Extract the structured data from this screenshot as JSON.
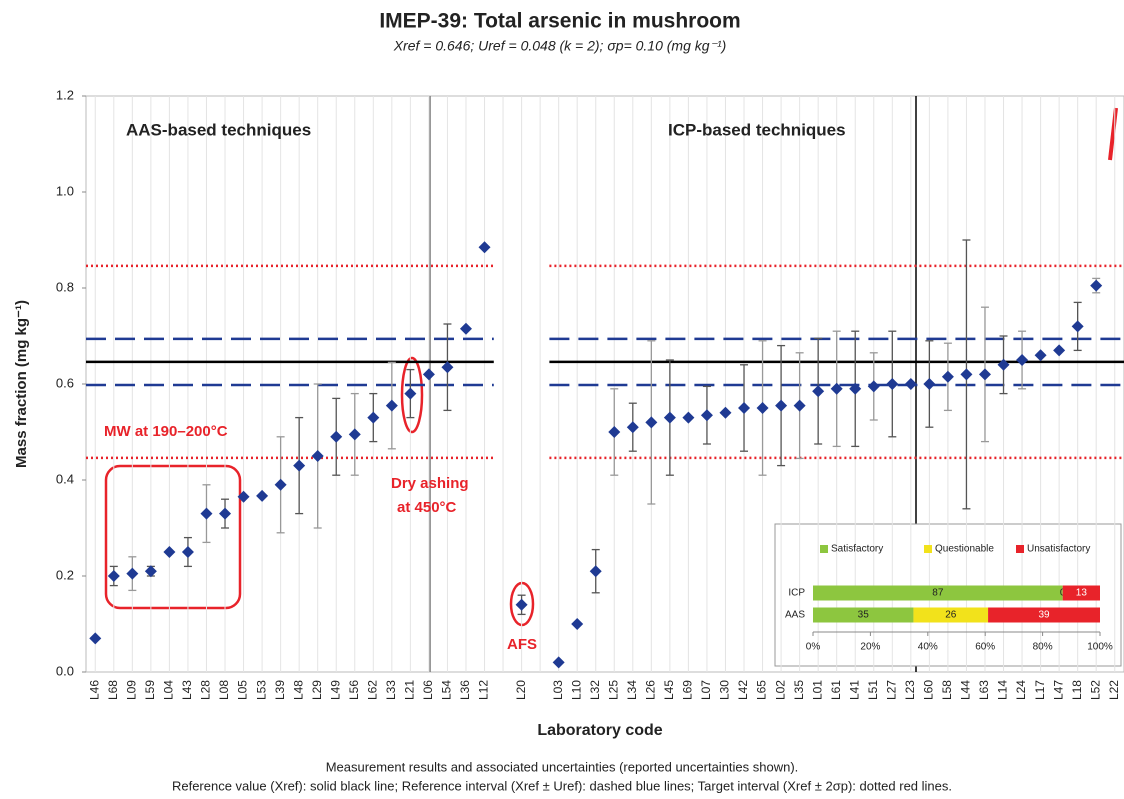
{
  "chart_data": [
    {
      "type": "scatter",
      "title": "IMEP-39: Total arsenic in mushroom",
      "subtitle": "Xref = 0.646; Uref = 0.048 (k = 2); σp= 0.10 (mg kg⁻¹)",
      "x_label": "Laboratory code",
      "y_label": "Mass fraction (mg kg⁻¹)",
      "categories": [
        "L46",
        "L68",
        "L09",
        "L59",
        "L04",
        "L43",
        "L28",
        "L08",
        "L05",
        "L53",
        "L39",
        "L48",
        "L29",
        "L49",
        "L56",
        "L62",
        "L33",
        "L21",
        "L06",
        "L54",
        "L36",
        "L12",
        null,
        "L20",
        null,
        "L03",
        "L10",
        "L32",
        "L25",
        "L34",
        "L26",
        "L45",
        "L69",
        "L07",
        "L30",
        "L42",
        "L65",
        "L02",
        "L35",
        "L01",
        "L61",
        "L41",
        "L51",
        "L27",
        "L23",
        "L60",
        "L58",
        "L44",
        "L63",
        "L14",
        "L24",
        "L17",
        "L47",
        "L18",
        "L52",
        "L22"
      ],
      "values": [
        0.07,
        0.2,
        0.205,
        0.21,
        0.25,
        0.25,
        0.33,
        0.33,
        0.365,
        0.367,
        0.39,
        0.43,
        0.45,
        0.49,
        0.495,
        0.53,
        0.555,
        0.58,
        0.62,
        0.635,
        0.715,
        0.885,
        null,
        0.14,
        null,
        0.02,
        0.1,
        0.21,
        0.5,
        0.51,
        0.52,
        0.53,
        0.53,
        0.535,
        0.54,
        0.55,
        0.55,
        0.555,
        0.555,
        0.585,
        0.59,
        0.59,
        0.595,
        0.6,
        0.6,
        0.6,
        0.615,
        0.62,
        0.62,
        0.64,
        0.65,
        0.66,
        0.67,
        0.72,
        0.805,
        null
      ],
      "errors": [
        null,
        0.02,
        0.035,
        0.01,
        null,
        0.03,
        0.06,
        0.03,
        null,
        null,
        0.1,
        0.1,
        0.15,
        0.08,
        0.085,
        0.05,
        0.09,
        0.05,
        null,
        0.09,
        null,
        null,
        null,
        0.02,
        null,
        null,
        null,
        0.045,
        0.09,
        0.05,
        0.17,
        0.12,
        null,
        0.06,
        null,
        0.09,
        0.14,
        0.125,
        0.11,
        0.11,
        0.12,
        0.12,
        0.07,
        0.11,
        null,
        0.09,
        0.07,
        0.28,
        0.14,
        0.06,
        0.06,
        null,
        null,
        0.05,
        0.015,
        null
      ],
      "color": "#1f3a93",
      "reference_value": 0.646,
      "reference_interval": [
        0.598,
        0.694
      ],
      "target_interval": [
        0.446,
        0.846
      ],
      "annotations": [
        "AAS-based techniques",
        "ICP-based techniques",
        "MW at 190–200°C",
        "Dry ashing",
        "at 450°C",
        "AFS"
      ],
      "ylim": [
        0,
        1.2
      ],
      "yticks": [
        {
          "value": 0,
          "label": "0.0"
        },
        0.2,
        0.4,
        0.6,
        0.8,
        {
          "value": 1,
          "label": "1.0"
        },
        1.2
      ],
      "grid": true
    },
    {
      "type": "bar",
      "orientation": "horizontal",
      "stacked": true,
      "categories": [
        "ICP",
        "AAS"
      ],
      "series": [
        {
          "name": "Satisfactory",
          "color": "#8dc63f",
          "values": [
            87,
            35
          ]
        },
        {
          "name": "Questionable",
          "color": "#f2e21b",
          "values": [
            0,
            26
          ]
        },
        {
          "name": "Unsatisfactory",
          "color": "#e8232a",
          "values": [
            13,
            39
          ]
        }
      ],
      "xlim": [
        0,
        100
      ],
      "xticks": [
        {
          "value": 0,
          "label": "0%"
        },
        {
          "value": 20,
          "label": "20%"
        },
        {
          "value": 40,
          "label": "40%"
        },
        {
          "value": 60,
          "label": "60%"
        },
        {
          "value": 80,
          "label": "80%"
        },
        {
          "value": 100,
          "label": "100%"
        }
      ]
    }
  ],
  "captions": [
    "Measurement results and associated uncertainties (reported uncertainties shown).",
    "Reference value (Xref): solid black line; Reference interval (Xref ± Uref): dashed blue lines; Target interval (Xref ± 2σp): dotted red lines."
  ]
}
